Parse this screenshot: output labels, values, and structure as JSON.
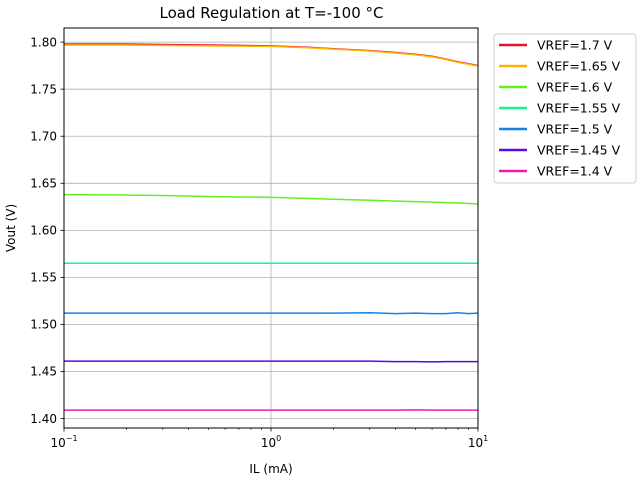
{
  "chart_data": {
    "type": "line",
    "title": "Load Regulation at T=-100 °C",
    "xlabel": "IL (mA)",
    "ylabel": "Vout (V)",
    "xscale": "log",
    "xlim": [
      0.1,
      10
    ],
    "ylim": [
      1.39,
      1.815
    ],
    "x_ticks": [
      {
        "base": "10",
        "exp": "−1",
        "value": 0.1
      },
      {
        "base": "10",
        "exp": "0",
        "value": 1
      },
      {
        "base": "10",
        "exp": "1",
        "value": 10
      }
    ],
    "y_ticks": [
      "1.40",
      "1.45",
      "1.50",
      "1.55",
      "1.60",
      "1.65",
      "1.70",
      "1.75",
      "1.80"
    ],
    "grid": true,
    "legend_position": "outside-top-right",
    "x": [
      0.1,
      0.2,
      0.3,
      0.5,
      0.7,
      1,
      1.5,
      2,
      3,
      4,
      5,
      6,
      7,
      8,
      9,
      10
    ],
    "series": [
      {
        "name": "VREF=1.7 V",
        "color": "#e8112d",
        "values": [
          1.798,
          1.798,
          1.7975,
          1.797,
          1.7965,
          1.796,
          1.7945,
          1.793,
          1.791,
          1.789,
          1.787,
          1.785,
          1.782,
          1.779,
          1.777,
          1.775
        ]
      },
      {
        "name": "VREF=1.65 V",
        "color": "#ffb400",
        "values": [
          1.797,
          1.797,
          1.7965,
          1.796,
          1.7958,
          1.7955,
          1.794,
          1.7925,
          1.7905,
          1.7885,
          1.7865,
          1.7845,
          1.7815,
          1.7785,
          1.7765,
          1.7745
        ]
      },
      {
        "name": "VREF=1.6 V",
        "color": "#62f01e",
        "values": [
          1.638,
          1.6375,
          1.637,
          1.636,
          1.6355,
          1.635,
          1.634,
          1.633,
          1.632,
          1.631,
          1.6305,
          1.63,
          1.6295,
          1.629,
          1.6285,
          1.628
        ]
      },
      {
        "name": "VREF=1.55 V",
        "color": "#14f58c",
        "values": [
          1.565,
          1.565,
          1.565,
          1.565,
          1.565,
          1.565,
          1.565,
          1.565,
          1.565,
          1.565,
          1.565,
          1.565,
          1.565,
          1.565,
          1.565,
          1.565
        ]
      },
      {
        "name": "VREF=1.5 V",
        "color": "#1782e6",
        "values": [
          1.512,
          1.512,
          1.512,
          1.512,
          1.512,
          1.512,
          1.512,
          1.512,
          1.5125,
          1.5115,
          1.512,
          1.5115,
          1.5115,
          1.5125,
          1.5115,
          1.512
        ]
      },
      {
        "name": "VREF=1.45 V",
        "color": "#5a0ae6",
        "values": [
          1.461,
          1.461,
          1.461,
          1.461,
          1.461,
          1.461,
          1.461,
          1.461,
          1.461,
          1.4605,
          1.4605,
          1.4602,
          1.4605,
          1.4605,
          1.4605,
          1.4605
        ]
      },
      {
        "name": "VREF=1.4 V",
        "color": "#f019b4",
        "values": [
          1.409,
          1.409,
          1.409,
          1.409,
          1.409,
          1.409,
          1.409,
          1.409,
          1.409,
          1.409,
          1.4093,
          1.409,
          1.409,
          1.409,
          1.409,
          1.409
        ]
      }
    ]
  }
}
